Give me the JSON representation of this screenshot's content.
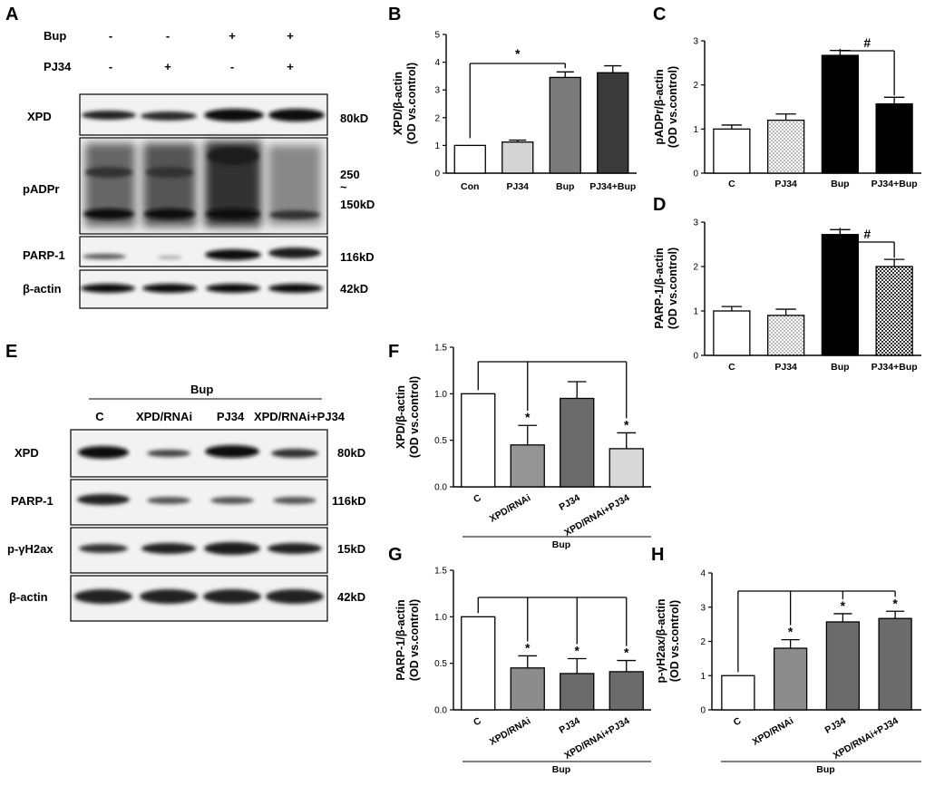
{
  "panels": {
    "A": {
      "letter": "A",
      "treatments": [
        {
          "name": "Bup",
          "signs": [
            "-",
            "-",
            "+",
            "+"
          ]
        },
        {
          "name": "PJ34",
          "signs": [
            "-",
            "+",
            "-",
            "+"
          ]
        }
      ],
      "blots": [
        {
          "name": "XPD",
          "size": "80kD"
        },
        {
          "name": "pADPr",
          "size": "250\n~\n150kD"
        },
        {
          "name": "PARP-1",
          "size": "116kD"
        },
        {
          "name": "β-actin",
          "size": "42kD"
        }
      ]
    },
    "E": {
      "letter": "E",
      "group": "Bup",
      "lanes": [
        "C",
        "XPD/RNAi",
        "PJ34",
        "XPD/RNAi+PJ34"
      ],
      "blots": [
        {
          "name": "XPD",
          "size": "80kD"
        },
        {
          "name": "PARP-1",
          "size": "116kD"
        },
        {
          "name": "p-γH2ax",
          "size": "15kD"
        },
        {
          "name": "β-actin",
          "size": "42kD"
        }
      ]
    }
  },
  "chart_data": [
    {
      "id": "B",
      "letter": "B",
      "type": "bar",
      "ylabel_lines": [
        "XPD/β-actin",
        "(OD vs.control)"
      ],
      "categories": [
        "Con",
        "PJ34",
        "Bup",
        "PJ34+Bup"
      ],
      "values": [
        1.0,
        1.12,
        3.45,
        3.62
      ],
      "errors": [
        0,
        0.07,
        0.2,
        0.25
      ],
      "fills": [
        "#ffffff",
        "#d4d4d4",
        "#7a7a7a",
        "#3a3a3a"
      ],
      "ylim": [
        0,
        5
      ],
      "yticks": [
        "0",
        "1",
        "2",
        "3",
        "4",
        "5"
      ],
      "significance": [
        {
          "symbol": "*",
          "from": 0,
          "to": 2
        }
      ]
    },
    {
      "id": "C",
      "letter": "C",
      "type": "bar",
      "ylabel_lines": [
        "pADPr/β-actin",
        "(OD vs.control)"
      ],
      "categories": [
        "C",
        "PJ34",
        "Bup",
        "PJ34+Bup"
      ],
      "values": [
        1.0,
        1.2,
        2.67,
        1.57
      ],
      "errors": [
        0.09,
        0.14,
        0.11,
        0.15
      ],
      "fills": [
        "#ffffff",
        "dots",
        "#000000",
        "#000000"
      ],
      "ylim": [
        0,
        3
      ],
      "yticks": [
        "0",
        "1",
        "2",
        "3"
      ],
      "significance": [
        {
          "symbol": "#",
          "from": 2,
          "to": 3
        }
      ]
    },
    {
      "id": "D",
      "letter": "D",
      "type": "bar",
      "ylabel_lines": [
        "PARP-1/β-actin",
        "(OD vs.control)"
      ],
      "categories": [
        "C",
        "PJ34",
        "Bup",
        "PJ34+Bup"
      ],
      "values": [
        1.0,
        0.9,
        2.72,
        2.0
      ],
      "errors": [
        0.1,
        0.14,
        0.11,
        0.16
      ],
      "fills": [
        "#ffffff",
        "dots",
        "#000000",
        "checker"
      ],
      "ylim": [
        0,
        3
      ],
      "yticks": [
        "0",
        "1",
        "2",
        "3"
      ],
      "significance": [
        {
          "symbol": "#",
          "from": 2,
          "to": 3
        }
      ]
    },
    {
      "id": "F",
      "letter": "F",
      "type": "bar",
      "ylabel_lines": [
        "XPD/β-actin",
        "(OD vs.control)"
      ],
      "categories": [
        "C",
        "XPD/RNAi",
        "PJ34",
        "XPD/RNAi+PJ34"
      ],
      "values": [
        1.0,
        0.45,
        0.95,
        0.41
      ],
      "errors": [
        0,
        0.21,
        0.18,
        0.17
      ],
      "fills": [
        "#ffffff",
        "#959595",
        "#6b6b6b",
        "#d9d9d9"
      ],
      "ylim": [
        0,
        1.5
      ],
      "yticks": [
        "0.0",
        "0.5",
        "1.0",
        "1.5"
      ],
      "group_label": "Bup",
      "significance": [
        {
          "symbol": "*",
          "from": 0,
          "to": 1
        },
        {
          "symbol": "*",
          "from": 0,
          "to": 3
        }
      ]
    },
    {
      "id": "G",
      "letter": "G",
      "type": "bar",
      "ylabel_lines": [
        "PARP-1/β-actin",
        "(OD vs.control)"
      ],
      "categories": [
        "C",
        "XPD/RNAi",
        "PJ34",
        "XPD/RNAi+PJ34"
      ],
      "values": [
        1.0,
        0.45,
        0.39,
        0.41
      ],
      "errors": [
        0,
        0.13,
        0.16,
        0.12
      ],
      "fills": [
        "#ffffff",
        "#8c8c8c",
        "#6b6b6b",
        "#6b6b6b"
      ],
      "ylim": [
        0,
        1.5
      ],
      "yticks": [
        "0.0",
        "0.5",
        "1.0",
        "1.5"
      ],
      "group_label": "Bup",
      "significance": [
        {
          "symbol": "*",
          "from": 0,
          "to": 1
        },
        {
          "symbol": "*",
          "from": 0,
          "to": 2
        },
        {
          "symbol": "*",
          "from": 0,
          "to": 3
        }
      ]
    },
    {
      "id": "H",
      "letter": "H",
      "type": "bar",
      "ylabel_lines": [
        "p-γH2ax/β-actin",
        "(OD vs.control)"
      ],
      "categories": [
        "C",
        "XPD/RNAi",
        "PJ34",
        "XPD/RNAi+PJ34"
      ],
      "values": [
        1.0,
        1.8,
        2.57,
        2.67
      ],
      "errors": [
        0,
        0.25,
        0.24,
        0.21
      ],
      "fills": [
        "#ffffff",
        "#8c8c8c",
        "#6b6b6b",
        "#6b6b6b"
      ],
      "ylim": [
        0,
        4
      ],
      "yticks": [
        "0",
        "1",
        "2",
        "3",
        "4"
      ],
      "group_label": "Bup",
      "significance": [
        {
          "symbol": "*",
          "from": 0,
          "to": 1
        },
        {
          "symbol": "*",
          "from": 0,
          "to": 2
        },
        {
          "symbol": "*",
          "from": 0,
          "to": 3
        }
      ]
    }
  ]
}
